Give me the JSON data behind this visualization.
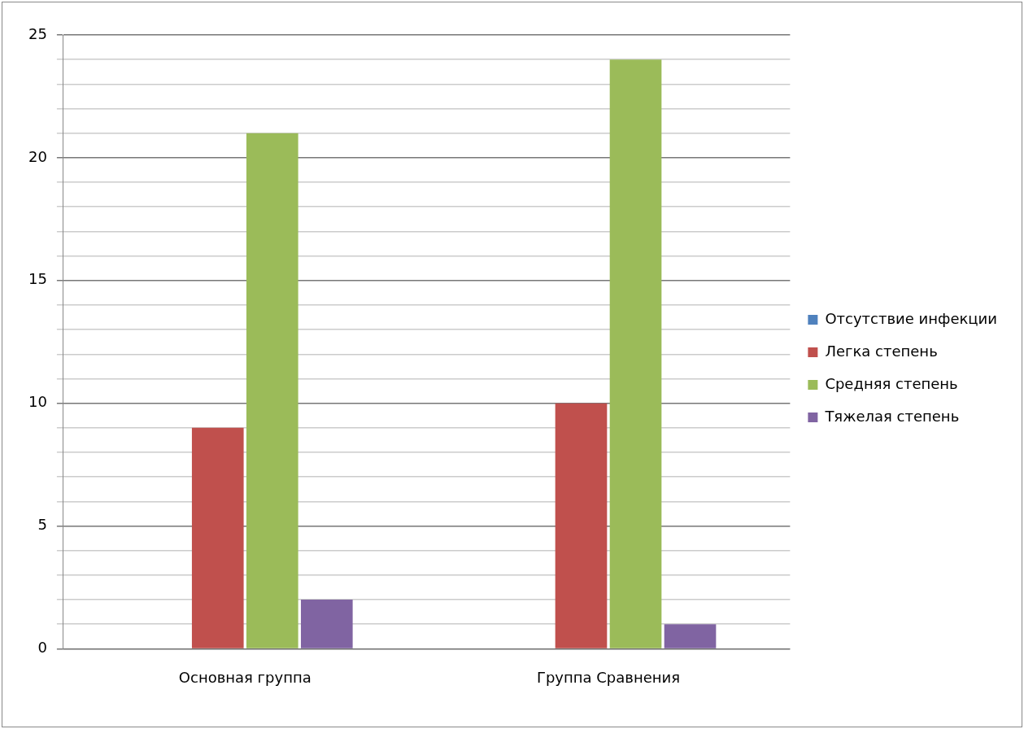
{
  "chart_data": {
    "type": "bar",
    "categories": [
      "Основная группа",
      "Группа Сравнения"
    ],
    "series": [
      {
        "name": "Отсутствие инфекции",
        "color": "#4f81bd",
        "values": [
          0,
          0
        ]
      },
      {
        "name": "Легка степень",
        "color": "#c0504d",
        "values": [
          9,
          10
        ]
      },
      {
        "name": "Средняя степень",
        "color": "#9bbb59",
        "values": [
          21,
          24
        ]
      },
      {
        "name": "Тяжелая степень",
        "color": "#8064a2",
        "values": [
          2,
          1
        ]
      }
    ],
    "ylim": [
      0,
      25
    ],
    "yticks": [
      0,
      {
        "value": 1,
        "label": null
      },
      {
        "value": 2,
        "label": null
      },
      {
        "value": 3,
        "label": null
      },
      {
        "value": 4,
        "label": null
      },
      5,
      {
        "value": 6,
        "label": null
      },
      {
        "value": 7,
        "label": null
      },
      {
        "value": 8,
        "label": null
      },
      {
        "value": 9,
        "label": null
      },
      10,
      {
        "value": 11,
        "label": null
      },
      {
        "value": 12,
        "label": null
      },
      {
        "value": 13,
        "label": null
      },
      {
        "value": 14,
        "label": null
      },
      15,
      {
        "value": 16,
        "label": null
      },
      {
        "value": 17,
        "label": null
      },
      {
        "value": 18,
        "label": null
      },
      {
        "value": 19,
        "label": null
      },
      20,
      {
        "value": 21,
        "label": null
      },
      {
        "value": 22,
        "label": null
      },
      {
        "value": 23,
        "label": null
      },
      {
        "value": 24,
        "label": null
      },
      25
    ],
    "grid": "y",
    "legend": "right"
  }
}
